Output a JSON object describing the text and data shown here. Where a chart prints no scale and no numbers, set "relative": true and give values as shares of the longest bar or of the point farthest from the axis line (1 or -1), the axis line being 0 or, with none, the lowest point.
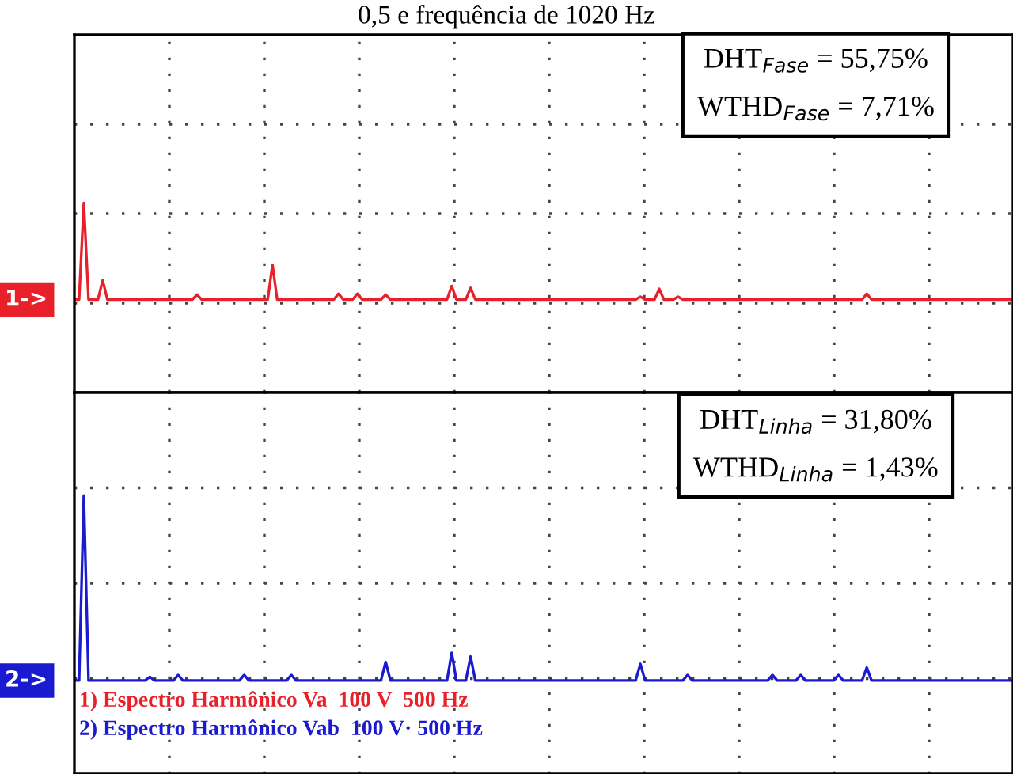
{
  "chart_data": [
    {
      "type": "line",
      "title": "0,5 e frequência de 1020 Hz",
      "relative": true,
      "grid": true,
      "categories": [
        null,
        null,
        null,
        null,
        null,
        null,
        null,
        null,
        null,
        null,
        null,
        null,
        null,
        null,
        null,
        null,
        null,
        null,
        null,
        null,
        null,
        null,
        null,
        null,
        null,
        null,
        null,
        null,
        null,
        null,
        null,
        null,
        null,
        null,
        null,
        null,
        null,
        null,
        null,
        null,
        null,
        null,
        null,
        null,
        null,
        null,
        null,
        null,
        null,
        null,
        null,
        null,
        null,
        null,
        null,
        null,
        null,
        null,
        null,
        null,
        null,
        null,
        null,
        null,
        null,
        null,
        null,
        null,
        null,
        null,
        null,
        null,
        null,
        null,
        null,
        null,
        null,
        null,
        null,
        null,
        null,
        null,
        null,
        null,
        null,
        null,
        null,
        null,
        null,
        null,
        null,
        null,
        null,
        null,
        null,
        null,
        null,
        null,
        null,
        null,
        null,
        null,
        null,
        null,
        null,
        null,
        null,
        null,
        null,
        null,
        null,
        null,
        null,
        null,
        null,
        null,
        null,
        null,
        null,
        null,
        null,
        null,
        null,
        null,
        null,
        null,
        null,
        null,
        null,
        null,
        null,
        null,
        null,
        null,
        null,
        null,
        null,
        null,
        null,
        null,
        null,
        null,
        null,
        null,
        null,
        null,
        null,
        null,
        null,
        null,
        null,
        null,
        null,
        null,
        null,
        null,
        null,
        null,
        null,
        null,
        null,
        null,
        null,
        null,
        null,
        null,
        null,
        null,
        null,
        null,
        null,
        null,
        null,
        null,
        null,
        null,
        null,
        null,
        null,
        null,
        null,
        null,
        null,
        null,
        null,
        null,
        null,
        null,
        null,
        null,
        null,
        null,
        null,
        null,
        null,
        null,
        null,
        null,
        null,
        null
      ],
      "series": [
        {
          "name": "1) Espectro Harmônico Va  100 V  500 Hz",
          "color": "#e8202a",
          "values": [
            0,
            0,
            1.0,
            0,
            0,
            0,
            0.2,
            0,
            0,
            0,
            0,
            0,
            0,
            0,
            0,
            0,
            0,
            0,
            0,
            0,
            0,
            0,
            0,
            0,
            0,
            0,
            0.05,
            0,
            0,
            0,
            0,
            0,
            0,
            0,
            0,
            0,
            0,
            0,
            0,
            0,
            0,
            0,
            0.36,
            0,
            0,
            0,
            0,
            0,
            0,
            0,
            0,
            0,
            0,
            0,
            0,
            0,
            0.06,
            0,
            0,
            0,
            0.06,
            0,
            0,
            0,
            0,
            0,
            0.05,
            0,
            0,
            0,
            0,
            0,
            0,
            0,
            0,
            0,
            0,
            0,
            0,
            0,
            0.14,
            0,
            0,
            0,
            0.12,
            0,
            0,
            0,
            0,
            0,
            0,
            0,
            0,
            0,
            0,
            0,
            0,
            0,
            0,
            0,
            0,
            0,
            0,
            0,
            0,
            0,
            0,
            0,
            0,
            0,
            0,
            0,
            0,
            0,
            0,
            0,
            0,
            0,
            0,
            0,
            0.03,
            0,
            0,
            0,
            0.11,
            0,
            0,
            0,
            0.03,
            0,
            0,
            0,
            0,
            0,
            0,
            0,
            0,
            0,
            0,
            0,
            0,
            0,
            0,
            0,
            0,
            0,
            0,
            0,
            0,
            0,
            0,
            0,
            0,
            0,
            0,
            0,
            0,
            0,
            0,
            0,
            0,
            0,
            0,
            0,
            0,
            0,
            0,
            0,
            0.06,
            0,
            0,
            0,
            0,
            0,
            0,
            0,
            0,
            0,
            0,
            0,
            0,
            0,
            0,
            0,
            0,
            0,
            0,
            0,
            0,
            0,
            0,
            0,
            0,
            0,
            0,
            0,
            0,
            0,
            0,
            0
          ]
        }
      ],
      "annotations": [
        "DHT$_{Fase}$ = 55,75%",
        "WTHD$_{Fase}$ = 7,71%",
        "1->"
      ]
    },
    {
      "type": "line",
      "relative": true,
      "grid": true,
      "categories": [
        null,
        null,
        null,
        null,
        null,
        null,
        null,
        null,
        null,
        null,
        null,
        null,
        null,
        null,
        null,
        null,
        null,
        null,
        null,
        null,
        null,
        null,
        null,
        null,
        null,
        null,
        null,
        null,
        null,
        null,
        null,
        null,
        null,
        null,
        null,
        null,
        null,
        null,
        null,
        null,
        null,
        null,
        null,
        null,
        null,
        null,
        null,
        null,
        null,
        null,
        null,
        null,
        null,
        null,
        null,
        null,
        null,
        null,
        null,
        null,
        null,
        null,
        null,
        null,
        null,
        null,
        null,
        null,
        null,
        null,
        null,
        null,
        null,
        null,
        null,
        null,
        null,
        null,
        null,
        null,
        null,
        null,
        null,
        null,
        null,
        null,
        null,
        null,
        null,
        null,
        null,
        null,
        null,
        null,
        null,
        null,
        null,
        null,
        null,
        null,
        null,
        null,
        null,
        null,
        null,
        null,
        null,
        null,
        null,
        null,
        null,
        null,
        null,
        null,
        null,
        null,
        null,
        null,
        null,
        null,
        null,
        null,
        null,
        null,
        null,
        null,
        null,
        null,
        null,
        null,
        null,
        null,
        null,
        null,
        null,
        null,
        null,
        null,
        null,
        null,
        null,
        null,
        null,
        null,
        null,
        null,
        null,
        null,
        null,
        null,
        null,
        null,
        null,
        null,
        null,
        null,
        null,
        null,
        null,
        null,
        null,
        null,
        null,
        null,
        null,
        null,
        null,
        null,
        null,
        null,
        null,
        null,
        null,
        null,
        null,
        null,
        null,
        null,
        null,
        null,
        null,
        null,
        null,
        null,
        null,
        null,
        null,
        null,
        null,
        null,
        null,
        null,
        null,
        null,
        null,
        null,
        null,
        null,
        null,
        null
      ],
      "series": [
        {
          "name": "2) Espectro Harmônico Vab  100 V· 500 Hz",
          "color": "#1a1ad0",
          "values": [
            0,
            0,
            1.0,
            0,
            0,
            0,
            0,
            0,
            0,
            0,
            0,
            0,
            0,
            0,
            0,
            0,
            0.02,
            0,
            0,
            0,
            0,
            0,
            0.03,
            0,
            0,
            0,
            0,
            0,
            0,
            0,
            0,
            0,
            0,
            0,
            0,
            0,
            0.03,
            0,
            0,
            0,
            0,
            0,
            0,
            0,
            0,
            0,
            0.03,
            0,
            0,
            0,
            0,
            0,
            0,
            0,
            0,
            0,
            0,
            0,
            0,
            0,
            0,
            0,
            0,
            0,
            0,
            0,
            0.1,
            0,
            0,
            0,
            0,
            0,
            0,
            0,
            0,
            0,
            0,
            0,
            0,
            0,
            0.15,
            0,
            0,
            0,
            0.13,
            0,
            0,
            0,
            0,
            0,
            0,
            0,
            0,
            0,
            0,
            0,
            0,
            0,
            0,
            0,
            0,
            0,
            0,
            0,
            0,
            0,
            0,
            0,
            0,
            0,
            0,
            0,
            0,
            0,
            0,
            0,
            0,
            0,
            0,
            0,
            0.09,
            0,
            0,
            0,
            0,
            0,
            0,
            0,
            0,
            0,
            0.03,
            0,
            0,
            0,
            0,
            0,
            0,
            0,
            0,
            0,
            0,
            0,
            0,
            0,
            0,
            0,
            0,
            0,
            0.03,
            0,
            0,
            0,
            0,
            0,
            0.03,
            0,
            0,
            0,
            0,
            0,
            0,
            0,
            0.03,
            0,
            0,
            0,
            0,
            0,
            0.07,
            0,
            0,
            0,
            0,
            0,
            0,
            0,
            0,
            0,
            0,
            0,
            0,
            0,
            0,
            0,
            0,
            0,
            0,
            0,
            0,
            0,
            0,
            0,
            0,
            0,
            0,
            0,
            0,
            0,
            0,
            0
          ]
        }
      ],
      "annotations": [
        "DHT$_{Linha}$ = 31,80%",
        "WTHD$_{Linha}$ = 1,43%",
        "2->"
      ]
    }
  ]
}
